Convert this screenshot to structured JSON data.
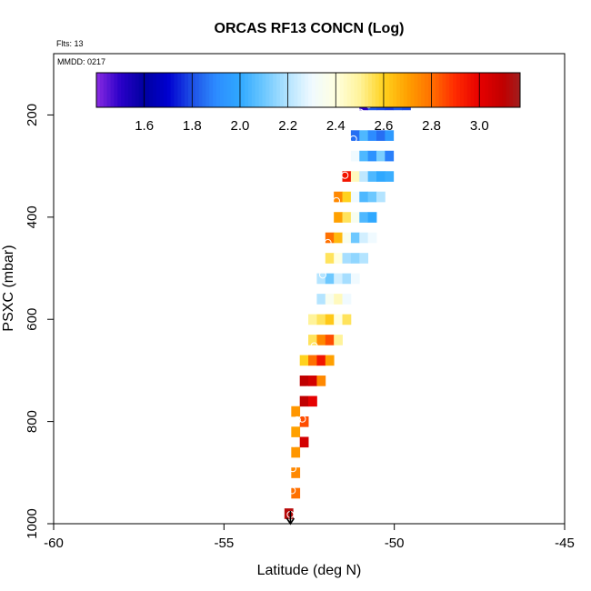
{
  "chart_data": {
    "type": "heatmap",
    "title": "ORCAS RF13 CONCN (Log)",
    "annotations": {
      "flights": "Flts: 13",
      "date": "MMDD: 0217"
    },
    "xlabel": "Latitude (deg N)",
    "ylabel": "PSXC (mbar)",
    "xlim": [
      -60,
      -45
    ],
    "ylim": [
      1000,
      80
    ],
    "y_inverted": true,
    "x_ticks": [
      -60,
      -55,
      -50,
      -45
    ],
    "x_tick_labels": [
      "-60",
      "-55",
      "-50",
      "-45"
    ],
    "y_ticks": [
      200,
      400,
      600,
      800,
      1000
    ],
    "y_tick_labels": [
      "200",
      "400",
      "600",
      "800",
      "1000"
    ],
    "cell_size": {
      "dlat": 0.25,
      "dp": 20
    },
    "colorbar": {
      "range": [
        1.4,
        3.17
      ],
      "ticks": [
        1.6,
        1.8,
        2.0,
        2.2,
        2.4,
        2.6,
        2.8,
        3.0
      ],
      "tick_labels": [
        "1.6",
        "1.8",
        "2.0",
        "2.2",
        "2.4",
        "2.6",
        "2.8",
        "3.0"
      ],
      "stops": [
        [
          1.4,
          "#8a2be2"
        ],
        [
          1.5,
          "#2a00c8"
        ],
        [
          1.6,
          "#0000a0"
        ],
        [
          1.7,
          "#0000d0"
        ],
        [
          1.8,
          "#1e50e6"
        ],
        [
          1.9,
          "#2d8cff"
        ],
        [
          2.0,
          "#2fa8ff"
        ],
        [
          2.1,
          "#6dc8ff"
        ],
        [
          2.2,
          "#b4e4ff"
        ],
        [
          2.3,
          "#f0faff"
        ],
        [
          2.4,
          "#ffffe0"
        ],
        [
          2.5,
          "#fff39a"
        ],
        [
          2.6,
          "#ffd21e"
        ],
        [
          2.7,
          "#ffa000"
        ],
        [
          2.8,
          "#ff7000"
        ],
        [
          2.9,
          "#ff2a00"
        ],
        [
          3.0,
          "#e60000"
        ],
        [
          3.1,
          "#c00000"
        ],
        [
          3.17,
          "#a01e1e"
        ]
      ]
    },
    "cells": [
      {
        "lat": -50.9,
        "p": 180,
        "v": 1.5
      },
      {
        "lat": -50.65,
        "p": 180,
        "v": 1.82
      },
      {
        "lat": -50.4,
        "p": 180,
        "v": 1.8
      },
      {
        "lat": -50.15,
        "p": 180,
        "v": 1.78
      },
      {
        "lat": -49.9,
        "p": 180,
        "v": 1.82
      },
      {
        "lat": -49.65,
        "p": 180,
        "v": 1.8
      },
      {
        "lat": -51.15,
        "p": 240,
        "v": 1.85
      },
      {
        "lat": -50.9,
        "p": 240,
        "v": 2.05
      },
      {
        "lat": -50.65,
        "p": 240,
        "v": 1.9
      },
      {
        "lat": -50.4,
        "p": 240,
        "v": 1.85
      },
      {
        "lat": -50.15,
        "p": 240,
        "v": 1.95
      },
      {
        "lat": -51.15,
        "p": 280,
        "v": 2.3
      },
      {
        "lat": -50.9,
        "p": 280,
        "v": 2.05
      },
      {
        "lat": -50.65,
        "p": 280,
        "v": 1.92
      },
      {
        "lat": -50.4,
        "p": 280,
        "v": 2.12
      },
      {
        "lat": -50.15,
        "p": 280,
        "v": 1.88
      },
      {
        "lat": -51.4,
        "p": 320,
        "v": 2.95
      },
      {
        "lat": -51.15,
        "p": 320,
        "v": 2.45
      },
      {
        "lat": -50.9,
        "p": 320,
        "v": 2.22
      },
      {
        "lat": -50.65,
        "p": 320,
        "v": 2.05
      },
      {
        "lat": -50.4,
        "p": 320,
        "v": 2.0
      },
      {
        "lat": -50.15,
        "p": 320,
        "v": 2.02
      },
      {
        "lat": -51.65,
        "p": 360,
        "v": 2.75
      },
      {
        "lat": -51.4,
        "p": 360,
        "v": 2.6
      },
      {
        "lat": -51.15,
        "p": 360,
        "v": 2.3
      },
      {
        "lat": -50.9,
        "p": 360,
        "v": 2.05
      },
      {
        "lat": -50.65,
        "p": 360,
        "v": 2.1
      },
      {
        "lat": -50.4,
        "p": 360,
        "v": 2.2
      },
      {
        "lat": -51.65,
        "p": 400,
        "v": 2.7
      },
      {
        "lat": -51.4,
        "p": 400,
        "v": 2.55
      },
      {
        "lat": -51.15,
        "p": 400,
        "v": 2.35
      },
      {
        "lat": -50.9,
        "p": 400,
        "v": 2.05
      },
      {
        "lat": -50.65,
        "p": 400,
        "v": 2.0
      },
      {
        "lat": -51.9,
        "p": 440,
        "v": 2.8
      },
      {
        "lat": -51.65,
        "p": 440,
        "v": 2.65
      },
      {
        "lat": -51.4,
        "p": 440,
        "v": 2.35
      },
      {
        "lat": -51.15,
        "p": 440,
        "v": 2.1
      },
      {
        "lat": -50.9,
        "p": 440,
        "v": 2.25
      },
      {
        "lat": -50.65,
        "p": 440,
        "v": 2.3
      },
      {
        "lat": -51.9,
        "p": 480,
        "v": 2.55
      },
      {
        "lat": -51.65,
        "p": 480,
        "v": 2.4
      },
      {
        "lat": -51.4,
        "p": 480,
        "v": 2.18
      },
      {
        "lat": -51.15,
        "p": 480,
        "v": 2.15
      },
      {
        "lat": -50.9,
        "p": 480,
        "v": 2.2
      },
      {
        "lat": -52.15,
        "p": 520,
        "v": 2.2
      },
      {
        "lat": -51.9,
        "p": 520,
        "v": 2.1
      },
      {
        "lat": -51.65,
        "p": 520,
        "v": 2.25
      },
      {
        "lat": -51.4,
        "p": 520,
        "v": 2.18
      },
      {
        "lat": -51.15,
        "p": 520,
        "v": 2.3
      },
      {
        "lat": -52.15,
        "p": 560,
        "v": 2.2
      },
      {
        "lat": -51.9,
        "p": 560,
        "v": 2.35
      },
      {
        "lat": -51.65,
        "p": 560,
        "v": 2.45
      },
      {
        "lat": -51.4,
        "p": 560,
        "v": 2.3
      },
      {
        "lat": -52.4,
        "p": 600,
        "v": 2.5
      },
      {
        "lat": -52.15,
        "p": 600,
        "v": 2.55
      },
      {
        "lat": -51.9,
        "p": 600,
        "v": 2.62
      },
      {
        "lat": -51.65,
        "p": 600,
        "v": 2.4
      },
      {
        "lat": -51.4,
        "p": 600,
        "v": 2.55
      },
      {
        "lat": -52.4,
        "p": 640,
        "v": 2.55
      },
      {
        "lat": -52.15,
        "p": 640,
        "v": 2.75
      },
      {
        "lat": -51.9,
        "p": 640,
        "v": 2.85
      },
      {
        "lat": -51.65,
        "p": 640,
        "v": 2.5
      },
      {
        "lat": -52.65,
        "p": 680,
        "v": 2.6
      },
      {
        "lat": -52.4,
        "p": 680,
        "v": 2.8
      },
      {
        "lat": -52.15,
        "p": 680,
        "v": 2.95
      },
      {
        "lat": -51.9,
        "p": 680,
        "v": 2.7
      },
      {
        "lat": -52.65,
        "p": 720,
        "v": 3.1
      },
      {
        "lat": -52.4,
        "p": 720,
        "v": 3.05
      },
      {
        "lat": -52.15,
        "p": 720,
        "v": 2.75
      },
      {
        "lat": -52.65,
        "p": 760,
        "v": 3.1
      },
      {
        "lat": -52.4,
        "p": 760,
        "v": 3.0
      },
      {
        "lat": -52.9,
        "p": 780,
        "v": 2.72
      },
      {
        "lat": -52.65,
        "p": 800,
        "v": 2.85
      },
      {
        "lat": -52.9,
        "p": 820,
        "v": 2.7
      },
      {
        "lat": -52.65,
        "p": 840,
        "v": 3.05
      },
      {
        "lat": -52.9,
        "p": 860,
        "v": 2.72
      },
      {
        "lat": -52.9,
        "p": 900,
        "v": 2.75
      },
      {
        "lat": -52.9,
        "p": 940,
        "v": 2.8
      },
      {
        "lat": -53.1,
        "p": 980,
        "v": 3.12
      }
    ],
    "markers": [
      {
        "lat": -51.0,
        "p": 195
      },
      {
        "lat": -50.75,
        "p": 180
      },
      {
        "lat": -50.2,
        "p": 178
      },
      {
        "lat": -49.7,
        "p": 178
      },
      {
        "lat": -51.2,
        "p": 247
      },
      {
        "lat": -51.45,
        "p": 318
      },
      {
        "lat": -51.7,
        "p": 368
      },
      {
        "lat": -51.95,
        "p": 450
      },
      {
        "lat": -52.1,
        "p": 513
      },
      {
        "lat": -52.35,
        "p": 652
      },
      {
        "lat": -52.55,
        "p": 738
      },
      {
        "lat": -52.85,
        "p": 797
      },
      {
        "lat": -52.7,
        "p": 795
      },
      {
        "lat": -52.95,
        "p": 843
      },
      {
        "lat": -52.98,
        "p": 892
      },
      {
        "lat": -53.0,
        "p": 935
      },
      {
        "lat": -53.05,
        "p": 982
      }
    ],
    "end_arrow": {
      "lat": -53.05,
      "p": 1000
    }
  }
}
